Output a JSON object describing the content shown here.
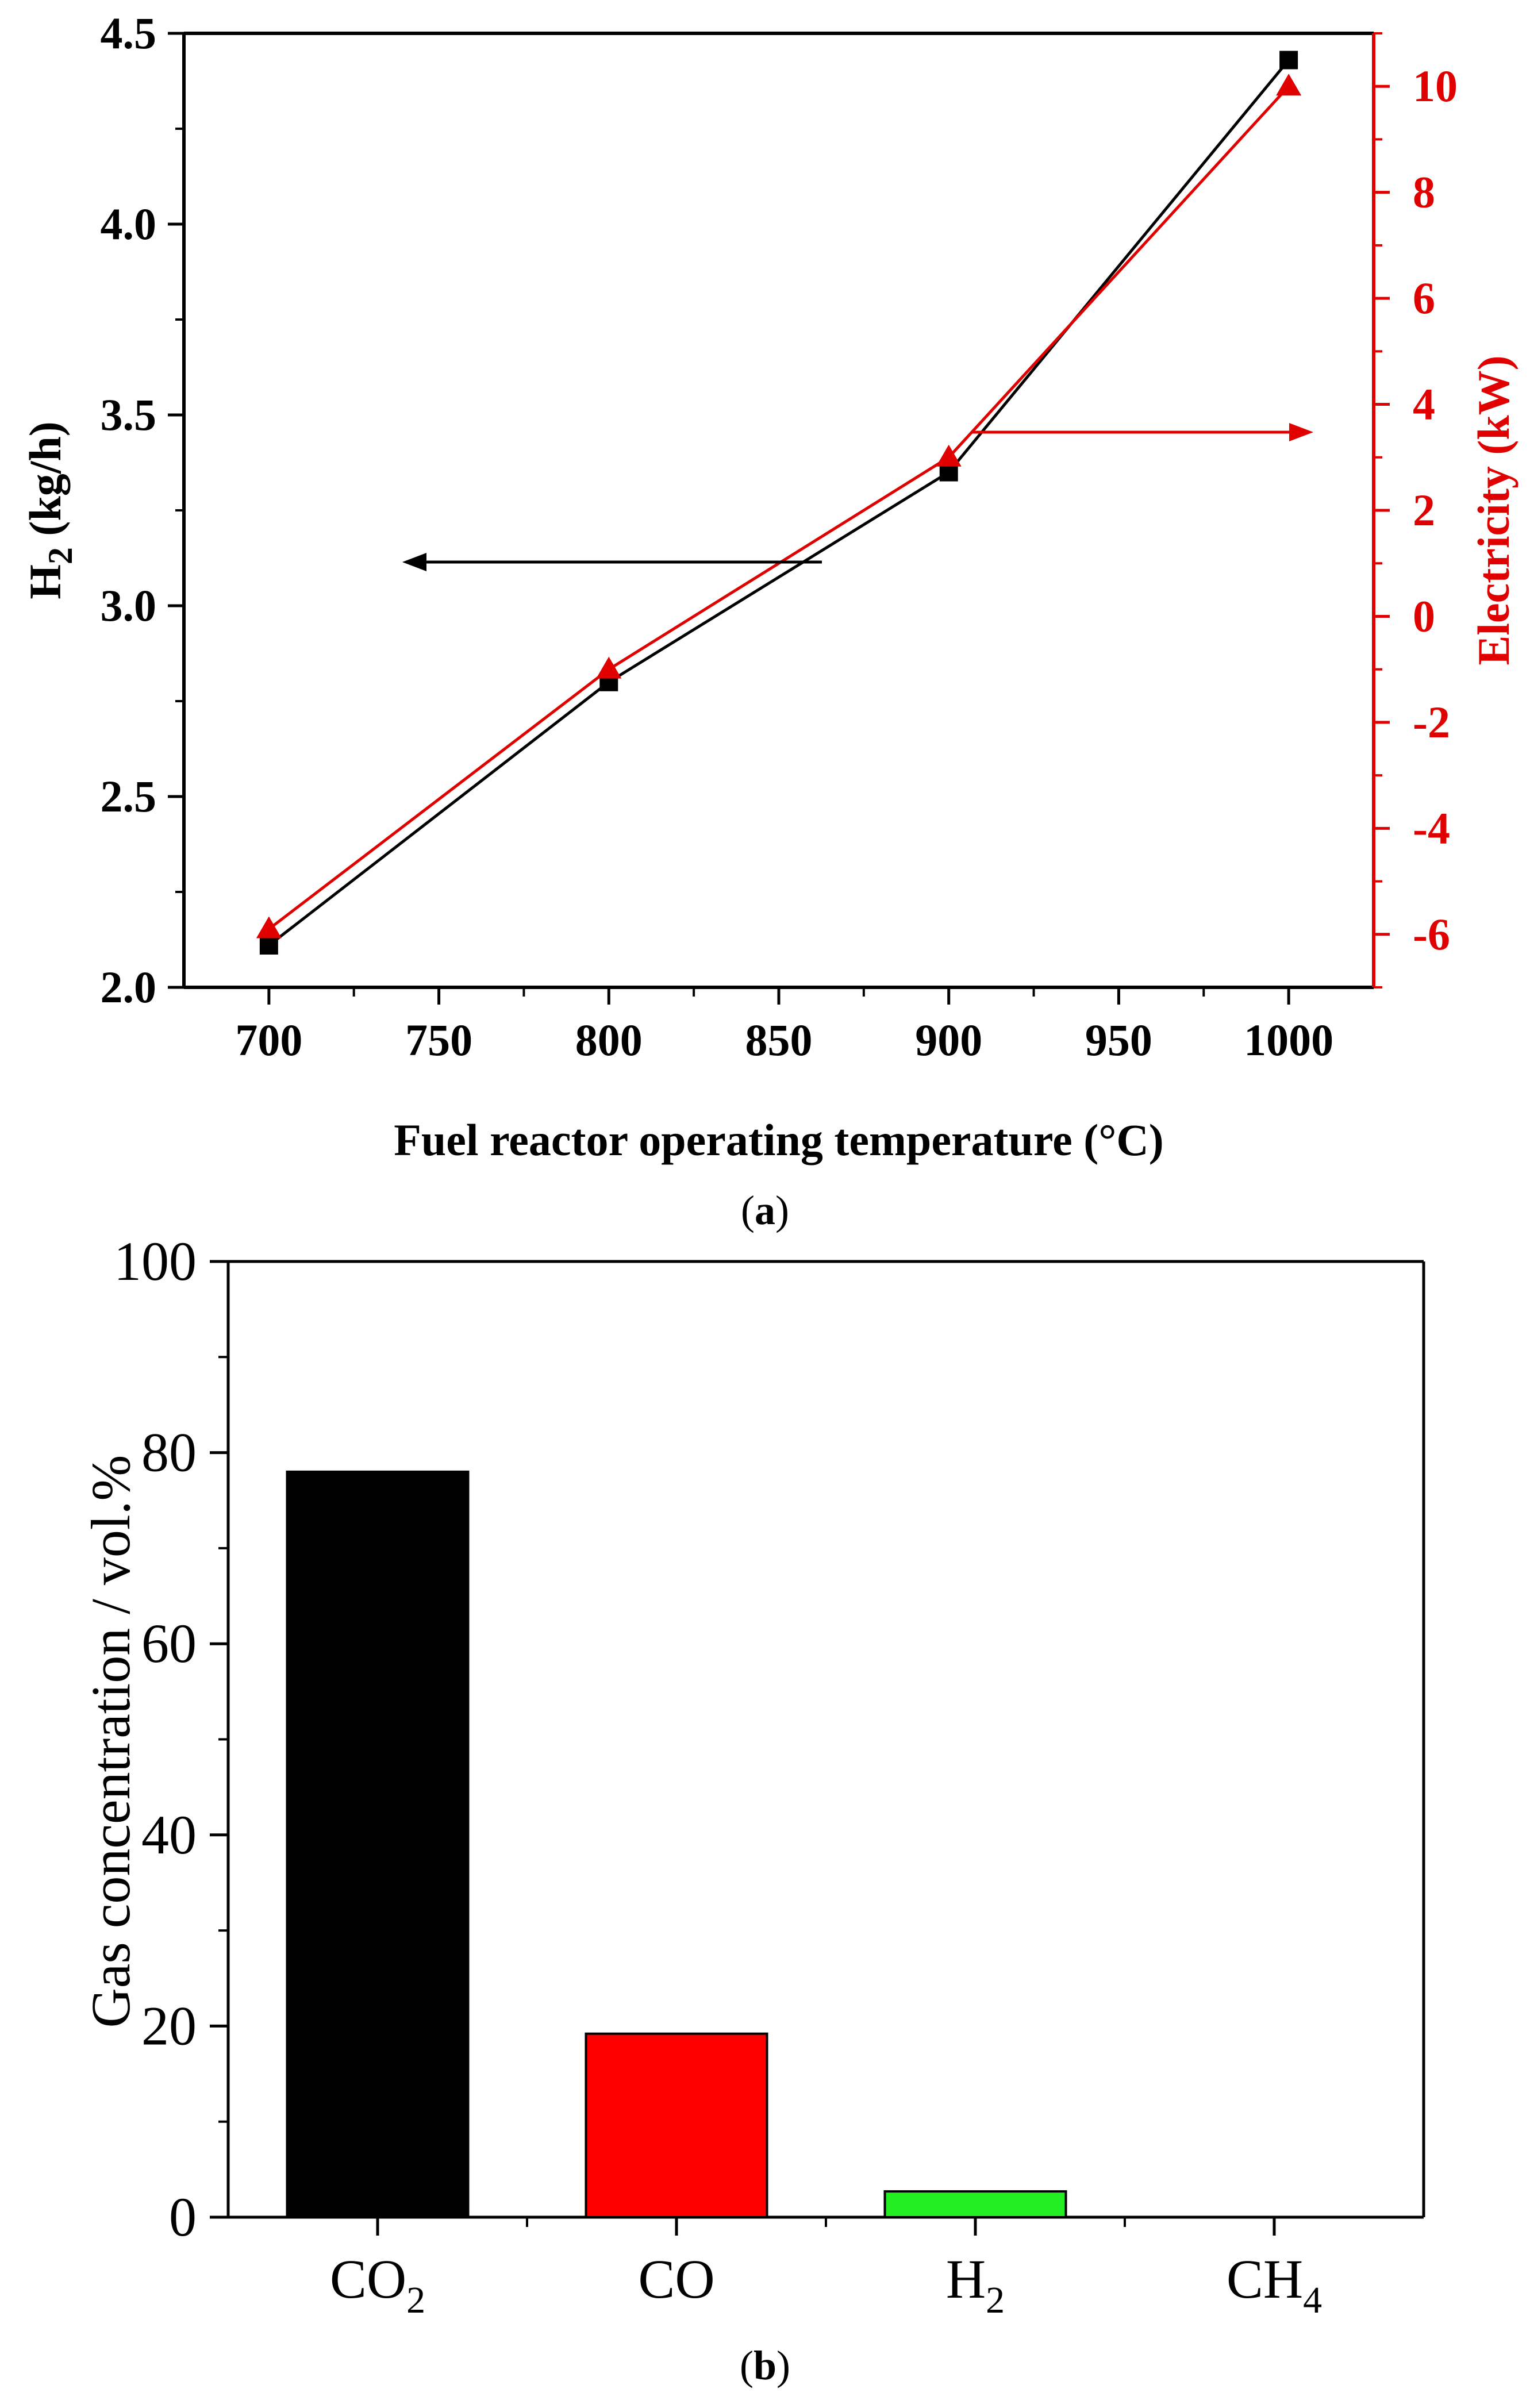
{
  "chart_data": [
    {
      "panel": "a",
      "type": "line",
      "caption": "a",
      "xlabel": "Fuel reactor operating temperature (°C)",
      "ylabel_left": "H",
      "ylabel_left_sub": "2",
      "ylabel_left_unit": " (kg/h)",
      "ylabel_right": "Electricity (kW)",
      "xlim": [
        675,
        1025
      ],
      "ylim_left": [
        2.0,
        4.5
      ],
      "ylim_right": [
        -7,
        11
      ],
      "x_ticks": [
        700,
        750,
        800,
        850,
        900,
        950,
        1000
      ],
      "y_left_ticks": [
        "2.0",
        "2.5",
        "3.0",
        "3.5",
        "4.0",
        "4.5"
      ],
      "y_right_ticks": [
        "-6",
        "-4",
        "-2",
        "0",
        "2",
        "4",
        "6",
        "8",
        "10"
      ],
      "x": [
        700,
        800,
        900,
        1000
      ],
      "series": [
        {
          "name": "H2",
          "axis": "left",
          "marker": "square",
          "color": "#000000",
          "values": [
            2.11,
            2.8,
            3.35,
            4.43
          ]
        },
        {
          "name": "Electricity",
          "axis": "right",
          "marker": "triangle",
          "color": "#e00000",
          "values": [
            -5.9,
            -1.0,
            3.0,
            10.0
          ]
        }
      ],
      "annotations": [
        {
          "type": "arrow",
          "direction": "left",
          "points_to": "H2 axis",
          "color": "#000000"
        },
        {
          "type": "arrow",
          "direction": "right",
          "points_to": "Electricity axis",
          "color": "#e00000"
        }
      ],
      "grid": false
    },
    {
      "panel": "b",
      "type": "bar",
      "caption": "b",
      "ylabel": "Gas concentration / vol.%",
      "ylim": [
        0,
        100
      ],
      "y_ticks": [
        "0",
        "20",
        "40",
        "60",
        "80",
        "100"
      ],
      "categories": [
        {
          "base": "CO",
          "sub": "2"
        },
        {
          "base": "CO",
          "sub": ""
        },
        {
          "base": "H",
          "sub": "2"
        },
        {
          "base": "CH",
          "sub": "4"
        }
      ],
      "values": [
        78,
        19.2,
        2.7,
        0
      ],
      "colors": [
        "#000000",
        "#ff0000",
        "#22ee22",
        "#ffffff"
      ],
      "grid": false
    }
  ]
}
